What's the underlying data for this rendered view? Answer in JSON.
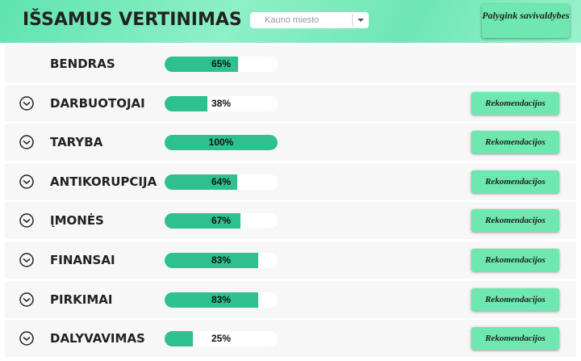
{
  "header": {
    "title": "IŠSAMUS VERTINIMAS",
    "dropdown": "Kauno miesto",
    "compare_button": "Palygink savivaldybes"
  },
  "rows": [
    {
      "name": "BENDRAS",
      "value": 65,
      "label": "65%"
    },
    {
      "name": "DARBUOTOJAI",
      "value": 38,
      "label": "38%",
      "action": "Rekomendacijos"
    },
    {
      "name": "TARYBA",
      "value": 100,
      "label": "100%",
      "action": "Rekomendacijos"
    },
    {
      "name": "ANTIKORUPCIJA",
      "value": 64,
      "label": "64%",
      "action": "Rekomendacijos"
    },
    {
      "name": "ĮMONĖS",
      "value": 67,
      "label": "67%",
      "action": "Rekomendacijos"
    },
    {
      "name": "FINANSAI",
      "value": 83,
      "label": "83%",
      "action": "Rekomendacijos"
    },
    {
      "name": "PIRKIMAI",
      "value": 83,
      "label": "83%",
      "action": "Rekomendacijos"
    },
    {
      "name": "DALYVAVIMAS",
      "value": 25,
      "label": "25%",
      "action": "Rekomendacijos"
    }
  ]
}
